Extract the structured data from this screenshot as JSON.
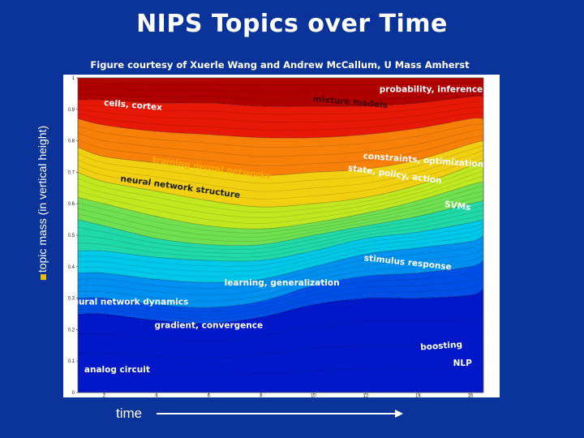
{
  "title": "NIPS Topics over Time",
  "subtitle": "Figure courtesy of Xuerle Wang  and Andrew McCallum, U Mass Amherst",
  "ylabel": "topic mass (in vertical height)",
  "xlabel": "time",
  "chart_data": {
    "type": "area",
    "stacked": true,
    "xlim": [
      1,
      16.5
    ],
    "ylim": [
      0,
      1
    ],
    "x_ticks": [
      "2",
      "4",
      "6",
      "8",
      "10",
      "12",
      "14",
      "16"
    ],
    "y_ticks": [
      "0",
      "0.1",
      "0.2",
      "0.3",
      "0.4",
      "0.5",
      "0.6",
      "0.7",
      "0.8",
      "0.9",
      "1"
    ],
    "boundary_x": [
      1,
      2,
      4,
      6,
      8,
      10,
      12,
      14,
      16,
      16.5
    ],
    "boundaries": [
      [
        0.25,
        0.25,
        0.23,
        0.22,
        0.24,
        0.28,
        0.3,
        0.3,
        0.31,
        0.33
      ],
      [
        0.3,
        0.3,
        0.28,
        0.27,
        0.29,
        0.34,
        0.37,
        0.38,
        0.4,
        0.42
      ],
      [
        0.38,
        0.38,
        0.36,
        0.35,
        0.36,
        0.4,
        0.44,
        0.46,
        0.48,
        0.5
      ],
      [
        0.45,
        0.45,
        0.43,
        0.42,
        0.42,
        0.45,
        0.49,
        0.51,
        0.54,
        0.55
      ],
      [
        0.55,
        0.53,
        0.49,
        0.47,
        0.47,
        0.5,
        0.53,
        0.56,
        0.6,
        0.61
      ],
      [
        0.62,
        0.6,
        0.56,
        0.53,
        0.52,
        0.54,
        0.57,
        0.61,
        0.66,
        0.67
      ],
      [
        0.7,
        0.67,
        0.64,
        0.61,
        0.59,
        0.6,
        0.62,
        0.66,
        0.72,
        0.74
      ],
      [
        0.78,
        0.75,
        0.73,
        0.71,
        0.69,
        0.7,
        0.71,
        0.74,
        0.79,
        0.8
      ],
      [
        0.87,
        0.85,
        0.83,
        0.82,
        0.81,
        0.81,
        0.82,
        0.84,
        0.87,
        0.87
      ],
      [
        0.93,
        0.93,
        0.92,
        0.92,
        0.91,
        0.91,
        0.91,
        0.92,
        0.94,
        0.94
      ]
    ],
    "band_colors": [
      "#0018c8",
      "#0050e8",
      "#0090f0",
      "#00c8e8",
      "#20d8a8",
      "#70e050",
      "#c0e820",
      "#f0d010",
      "#f88008",
      "#e81808",
      "#b00000"
    ],
    "annotations": [
      {
        "text": "probability, inference",
        "x": 14.5,
        "y": 0.955,
        "color": "#ffffff",
        "rotate": 0
      },
      {
        "text": "mixture models",
        "x": 11.4,
        "y": 0.915,
        "color": "#400000",
        "rotate": 5
      },
      {
        "text": "cells, cortex",
        "x": 3.1,
        "y": 0.905,
        "color": "#ffffff",
        "rotate": 5
      },
      {
        "text": "constraints, optimization",
        "x": 14.2,
        "y": 0.73,
        "color": "#ffffff",
        "rotate": 4
      },
      {
        "text": "state, policy, action",
        "x": 13.1,
        "y": 0.685,
        "color": "#ffffff",
        "rotate": 8
      },
      {
        "text": "training neural networks",
        "x": 6.1,
        "y": 0.705,
        "color": "#ffaa00",
        "rotate": 8
      },
      {
        "text": "neural network structure",
        "x": 4.9,
        "y": 0.645,
        "color": "#202000",
        "rotate": 8
      },
      {
        "text": "SVMs",
        "x": 15.5,
        "y": 0.585,
        "color": "#ffffff",
        "rotate": 8
      },
      {
        "text": "stimulus response",
        "x": 13.6,
        "y": 0.405,
        "color": "#ffffff",
        "rotate": 6
      },
      {
        "text": "learning, generalization",
        "x": 8.8,
        "y": 0.34,
        "color": "#ffffff",
        "rotate": 0
      },
      {
        "text": "neural network dynamics",
        "x": 2.9,
        "y": 0.28,
        "color": "#ffffff",
        "rotate": 0
      },
      {
        "text": "gradient, convergence",
        "x": 6.0,
        "y": 0.205,
        "color": "#ffffff",
        "rotate": 0
      },
      {
        "text": "boosting",
        "x": 14.9,
        "y": 0.14,
        "color": "#ffffff",
        "rotate": -4
      },
      {
        "text": "NLP",
        "x": 15.7,
        "y": 0.085,
        "color": "#ffffff",
        "rotate": 0
      },
      {
        "text": "analog circuit",
        "x": 2.5,
        "y": 0.065,
        "color": "#ffffff",
        "rotate": 0
      }
    ]
  }
}
